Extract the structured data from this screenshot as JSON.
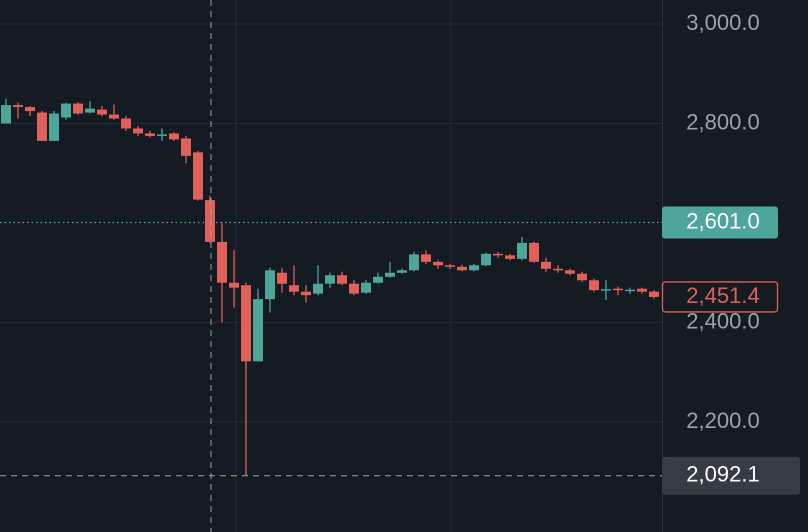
{
  "chart_data": {
    "type": "candlestick",
    "open": [
      2800,
      2837,
      2833,
      2822,
      2765,
      2812,
      2840,
      2822,
      2828,
      2818,
      2810,
      2790,
      2780,
      2775,
      2780,
      2770,
      2742,
      2646,
      2562,
      2480,
      2475,
      2322,
      2447,
      2500,
      2475,
      2462,
      2458,
      2478,
      2495,
      2478,
      2460,
      2480,
      2492,
      2500,
      2505,
      2537,
      2522,
      2515,
      2512,
      2505,
      2515,
      2538,
      2535,
      2528,
      2560,
      2522,
      2508,
      2505,
      2498,
      2485,
      2465,
      2468,
      2463,
      2468,
      2462
    ],
    "high": [
      2850,
      2842,
      2835,
      2825,
      2825,
      2842,
      2843,
      2845,
      2835,
      2838,
      2815,
      2795,
      2785,
      2790,
      2782,
      2775,
      2745,
      2655,
      2600,
      2545,
      2480,
      2468,
      2510,
      2510,
      2515,
      2475,
      2515,
      2500,
      2502,
      2485,
      2485,
      2500,
      2522,
      2508,
      2542,
      2545,
      2525,
      2518,
      2516,
      2518,
      2540,
      2542,
      2538,
      2572,
      2562,
      2530,
      2515,
      2508,
      2502,
      2488,
      2485,
      2472,
      2470,
      2470,
      2465
    ],
    "low": [
      2800,
      2810,
      2815,
      2765,
      2765,
      2808,
      2818,
      2820,
      2815,
      2808,
      2785,
      2775,
      2772,
      2765,
      2765,
      2720,
      2645,
      2560,
      2400,
      2430,
      2092.1,
      2322,
      2420,
      2460,
      2455,
      2440,
      2455,
      2470,
      2475,
      2455,
      2458,
      2478,
      2490,
      2498,
      2503,
      2518,
      2508,
      2508,
      2503,
      2503,
      2513,
      2530,
      2525,
      2525,
      2520,
      2502,
      2500,
      2495,
      2482,
      2462,
      2445,
      2455,
      2458,
      2458,
      2448
    ],
    "close": [
      2837,
      2833,
      2825,
      2765,
      2820,
      2840,
      2820,
      2830,
      2818,
      2810,
      2790,
      2780,
      2775,
      2778,
      2768,
      2735,
      2647,
      2562,
      2480,
      2470,
      2322,
      2447,
      2505,
      2478,
      2462,
      2455,
      2478,
      2495,
      2478,
      2458,
      2480,
      2492,
      2500,
      2505,
      2537,
      2522,
      2515,
      2512,
      2505,
      2515,
      2538,
      2535,
      2528,
      2560,
      2522,
      2508,
      2505,
      2498,
      2485,
      2465,
      2467,
      2465,
      2466,
      2462,
      2451.4
    ],
    "up_color": "#4ea59a",
    "down_color": "#e0605a",
    "ylim": [
      1979,
      3048.2
    ],
    "yticks": [
      {
        "value": 2200,
        "label": "2,200.0"
      },
      {
        "value": 2400,
        "label": "2,400.0"
      },
      {
        "value": 2800,
        "label": "2,800.0"
      },
      {
        "value": 3000,
        "label": "3,000.0"
      }
    ],
    "grid": true,
    "marker_price": {
      "value": 2601.0,
      "label": "2,601.0"
    },
    "last_price": {
      "value": 2451.4,
      "label": "2,451.4"
    },
    "crosshair_price": {
      "value": 2092.1,
      "label": "2,092.1"
    }
  }
}
